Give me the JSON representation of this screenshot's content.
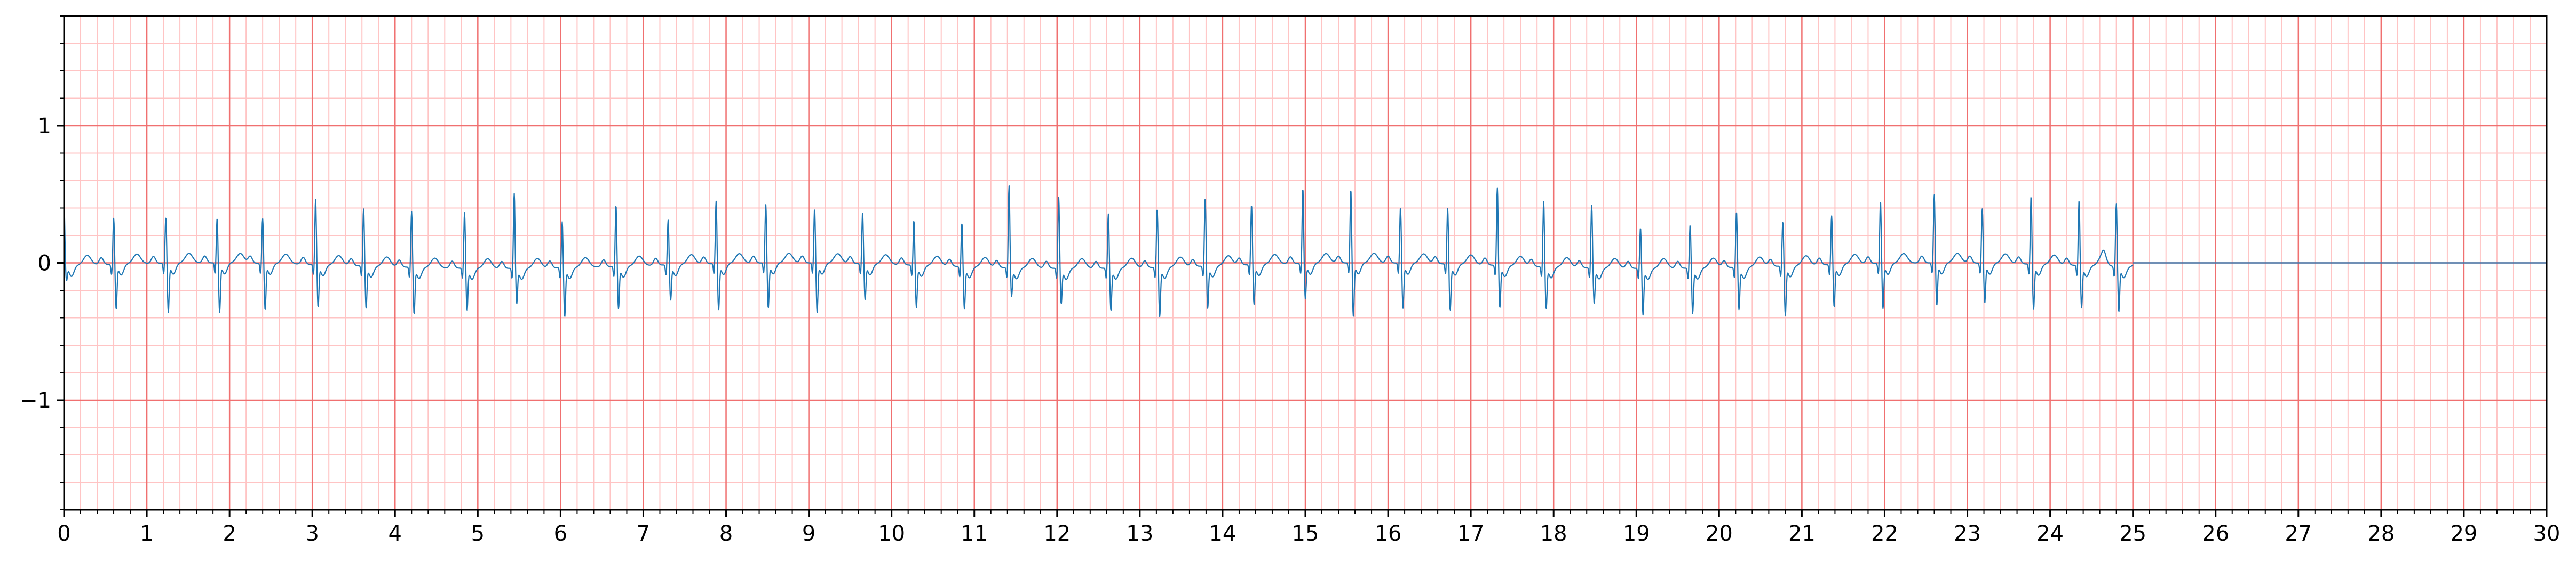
{
  "chart_data": {
    "type": "line",
    "title": "",
    "xlabel": "",
    "ylabel": "",
    "xlim": [
      0,
      30
    ],
    "ylim": [
      -1.8,
      1.8
    ],
    "x_ticks": [
      0,
      1,
      2,
      3,
      4,
      5,
      6,
      7,
      8,
      9,
      10,
      11,
      12,
      13,
      14,
      15,
      16,
      17,
      18,
      19,
      20,
      21,
      22,
      23,
      24,
      25,
      26,
      27,
      28,
      29,
      30
    ],
    "x_tick_labels": [
      "0",
      "1",
      "2",
      "3",
      "4",
      "5",
      "6",
      "7",
      "8",
      "9",
      "10",
      "11",
      "12",
      "13",
      "14",
      "15",
      "16",
      "17",
      "18",
      "19",
      "20",
      "21",
      "22",
      "23",
      "24",
      "25",
      "26",
      "27",
      "28",
      "29",
      "30"
    ],
    "y_ticks": [
      -1,
      0,
      1
    ],
    "y_tick_labels": [
      "−1",
      "0",
      "1"
    ],
    "grid": {
      "major_x_step": 1,
      "minor_x_step": 0.2,
      "major_y_step": 1,
      "minor_y_step": 0.2
    },
    "colors": {
      "major_grid": "#f07070",
      "minor_grid": "#ffc4c4",
      "trace": "#1f77b4",
      "axes": "#000000"
    },
    "signal_end": 25,
    "series": [
      {
        "beat_times": [
          0.0,
          0.6,
          1.23,
          1.85,
          2.4,
          3.04,
          3.62,
          4.2,
          4.84,
          5.44,
          6.02,
          6.67,
          7.3,
          7.88,
          8.48,
          9.07,
          9.65,
          10.27,
          10.85,
          11.42,
          12.02,
          12.62,
          13.21,
          13.79,
          14.35,
          14.97,
          15.55,
          16.15,
          16.72,
          17.32,
          17.88,
          18.46,
          19.05,
          19.65,
          20.21,
          20.77,
          21.36,
          21.95,
          22.6,
          23.18,
          23.77,
          24.35,
          24.8
        ],
        "r_amplitudes": [
          0.46,
          0.34,
          0.34,
          0.33,
          0.33,
          0.48,
          0.42,
          0.41,
          0.41,
          0.55,
          0.34,
          0.45,
          0.33,
          0.46,
          0.43,
          0.4,
          0.38,
          0.33,
          0.32,
          0.6,
          0.52,
          0.4,
          0.43,
          0.5,
          0.44,
          0.55,
          0.54,
          0.41,
          0.41,
          0.57,
          0.48,
          0.46,
          0.3,
          0.32,
          0.41,
          0.33,
          0.36,
          0.46,
          0.5,
          0.4,
          0.5,
          0.48,
          0.46
        ],
        "s_amplitudes": [
          -0.1,
          -0.32,
          -0.35,
          -0.35,
          -0.33,
          -0.3,
          -0.3,
          -0.33,
          -0.3,
          -0.25,
          -0.35,
          -0.3,
          -0.25,
          -0.33,
          -0.32,
          -0.35,
          -0.25,
          -0.3,
          -0.3,
          -0.2,
          -0.25,
          -0.3,
          -0.35,
          -0.3,
          -0.28,
          -0.25,
          -0.38,
          -0.32,
          -0.33,
          -0.3,
          -0.3,
          -0.25,
          -0.33,
          -0.32,
          -0.3,
          -0.35,
          -0.3,
          -0.32,
          -0.3,
          -0.28,
          -0.32,
          -0.3,
          -0.32
        ]
      }
    ]
  }
}
